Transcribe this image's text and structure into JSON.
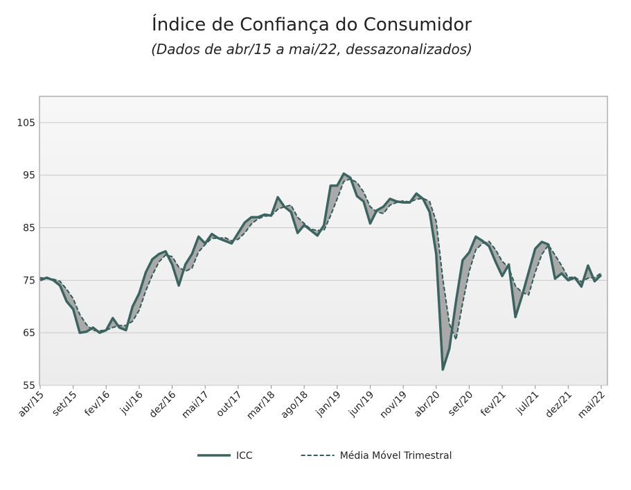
{
  "chart_data": {
    "type": "line",
    "title": "Índice de Confiança do Consumidor",
    "subtitle": "(Dados de abr/15 a mai/22, dessazonalizados)",
    "categories": [
      "abr/15",
      null,
      null,
      null,
      null,
      "set/15",
      null,
      null,
      null,
      null,
      "fev/16",
      null,
      null,
      null,
      null,
      "jul/16",
      null,
      null,
      null,
      null,
      "dez/16",
      null,
      null,
      null,
      null,
      "mai/17",
      null,
      null,
      null,
      null,
      "out/17",
      null,
      null,
      null,
      null,
      "mar/18",
      null,
      null,
      null,
      null,
      "ago/18",
      null,
      null,
      null,
      null,
      "jan/19",
      null,
      null,
      null,
      null,
      "jun/19",
      null,
      null,
      null,
      null,
      "nov/19",
      null,
      null,
      null,
      null,
      "abr/20",
      null,
      null,
      null,
      null,
      "set/20",
      null,
      null,
      null,
      null,
      "fev/21",
      null,
      null,
      null,
      null,
      "jul/21",
      null,
      null,
      null,
      null,
      "dez/21",
      null,
      null,
      null,
      null,
      "mai/22"
    ],
    "series": [
      {
        "name": "ICC",
        "color": "#3b6461",
        "dash": false,
        "values": [
          75,
          75.5,
          75,
          74,
          71,
          69.5,
          65,
          65.2,
          66,
          65,
          65.5,
          67.8,
          66,
          65.5,
          70,
          72.5,
          76.5,
          79,
          80,
          80.5,
          78,
          74,
          78,
          80,
          83.3,
          82,
          83.8,
          83,
          82.5,
          82,
          84,
          86,
          87,
          87,
          87.5,
          87.3,
          90.8,
          89,
          88,
          84,
          85.5,
          84.5,
          83.5,
          85.5,
          93,
          93,
          95.3,
          94.5,
          91,
          90,
          85.8,
          88.3,
          89,
          90.5,
          90,
          89.8,
          89.8,
          91.5,
          90.5,
          88,
          80,
          58,
          62,
          71,
          78.8,
          80.3,
          83.3,
          82.5,
          81.5,
          78.5,
          75.8,
          78,
          68,
          72,
          76.5,
          81,
          82.3,
          81.8,
          75.3,
          76.3,
          75,
          75.5,
          73.8,
          77.8,
          74.8,
          76
        ]
      },
      {
        "name": "Média Móvel Trimestral",
        "color": "#2f5a57",
        "dash": true,
        "values": [
          75.5,
          75.3,
          75.2,
          74.8,
          73.3,
          71.5,
          68.5,
          66.6,
          65.4,
          65.4,
          65.5,
          66,
          66.4,
          66.4,
          67.2,
          69.3,
          73,
          76,
          78.5,
          79.8,
          79.5,
          77.5,
          76.7,
          77.3,
          80.4,
          81.8,
          83,
          83,
          83.1,
          82.5,
          82.8,
          84,
          85.7,
          86.7,
          87.2,
          87.3,
          88.5,
          89,
          89.3,
          87,
          85.8,
          84.7,
          84.5,
          84.5,
          87.3,
          90.5,
          93.8,
          94.3,
          93.6,
          91.8,
          89,
          88,
          87.7,
          89.3,
          89.8,
          90.1,
          89.9,
          90.4,
          90.6,
          90,
          86.2,
          75.3,
          66.7,
          63.7,
          70.6,
          76.7,
          80.8,
          82,
          82.4,
          80.8,
          78.6,
          77.4,
          73.9,
          72.7,
          72.2,
          76.5,
          79.9,
          81.7,
          79.8,
          77.8,
          75.5,
          75.6,
          74.7,
          75.4,
          75.5,
          76.4
        ]
      }
    ],
    "ylim": [
      55,
      110
    ],
    "yticks": [
      55,
      65,
      75,
      85,
      95,
      105
    ],
    "grid": true,
    "fill_between": "#a9a9a9",
    "legend": "bottom"
  }
}
